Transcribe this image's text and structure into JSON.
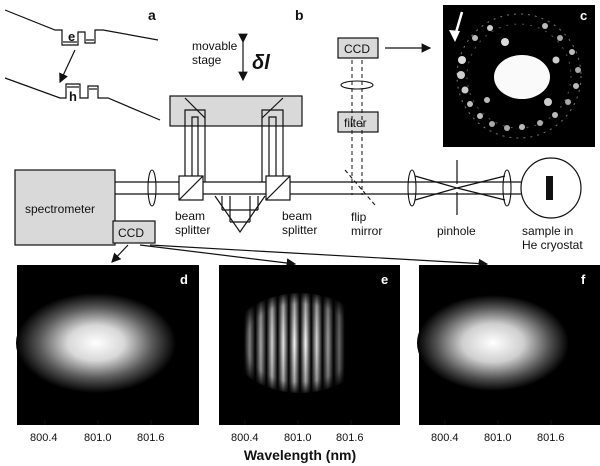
{
  "panel_letters": {
    "a": "a",
    "b": "b",
    "c": "c",
    "d": "d",
    "e": "e",
    "f": "f"
  },
  "band_diagram": {
    "electron": "e",
    "hole": "h"
  },
  "setup": {
    "movable_stage_line1": "movable",
    "movable_stage_line2": "stage",
    "delta_l": "δl",
    "ccd_top": "CCD",
    "filter": "filter",
    "spectrometer": "spectrometer",
    "ccd_bottom": "CCD",
    "beam_splitter_1_line1": "beam",
    "beam_splitter_1_line2": "splitter",
    "beam_splitter_2_line1": "beam",
    "beam_splitter_2_line2": "splitter",
    "flip_mirror_line1": "flip",
    "flip_mirror_line2": "mirror",
    "pinhole": "pinhole",
    "sample_line1": "sample in",
    "sample_line2": "He cryostat"
  },
  "spectra": {
    "x_ticks": [
      "800.4",
      "801.0",
      "801.6"
    ],
    "xlabel": "Wavelength (nm)"
  },
  "colors": {
    "panel_background": "#000000",
    "emission": "#ffffff",
    "stage_fill": "#d9d9d9"
  }
}
